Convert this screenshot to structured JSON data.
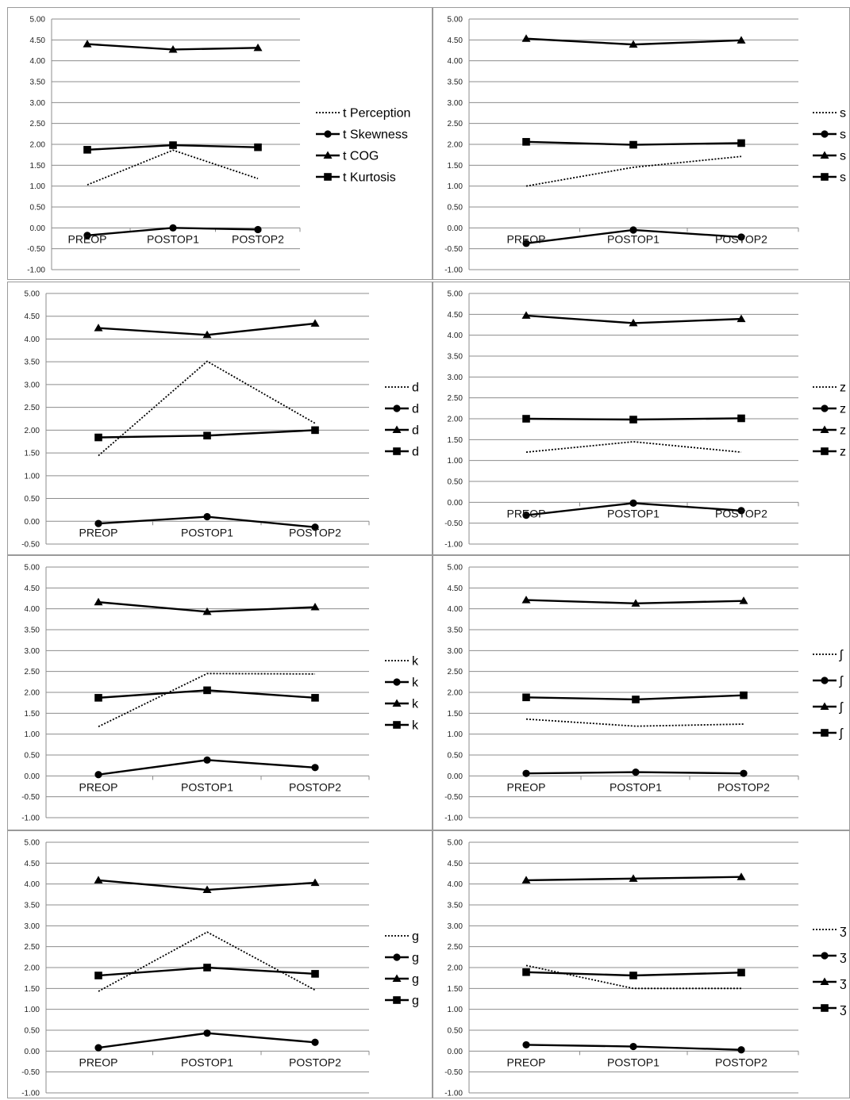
{
  "chart_data": [
    {
      "type": "line",
      "categories": [
        "PREOP",
        "POSTOP1",
        "POSTOP2"
      ],
      "ylim": [
        -1.0,
        5.0
      ],
      "yticks": [
        "5.00",
        "4.50",
        "4.00",
        "3.50",
        "3.00",
        "2.50",
        "2.00",
        "1.50",
        "1.00",
        "0.50",
        "0.00",
        "-0.50",
        "-1.00"
      ],
      "grid": true,
      "legend_position": "right",
      "series": [
        {
          "name": "t Perception",
          "style": "dotted",
          "marker": "none",
          "values": [
            1.03,
            1.86,
            1.18
          ]
        },
        {
          "name": "t Skewness",
          "style": "solid",
          "marker": "circle",
          "values": [
            -0.18,
            0.0,
            -0.04
          ]
        },
        {
          "name": "t COG",
          "style": "solid",
          "marker": "triangle",
          "values": [
            4.4,
            4.27,
            4.31
          ]
        },
        {
          "name": "t Kurtosis",
          "style": "solid",
          "marker": "square",
          "values": [
            1.87,
            1.98,
            1.93
          ]
        }
      ]
    },
    {
      "type": "line",
      "categories": [
        "PREOP",
        "POSTOP1",
        "POSTOP2"
      ],
      "ylim": [
        -1.0,
        5.0
      ],
      "yticks": [
        "5.00",
        "4.50",
        "4.00",
        "3.50",
        "3.00",
        "2.50",
        "2.00",
        "1.50",
        "1.00",
        "0.50",
        "0.00",
        "-0.50",
        "-1.00"
      ],
      "grid": true,
      "legend_position": "right",
      "series": [
        {
          "name": "s",
          "style": "dotted",
          "marker": "none",
          "values": [
            1.0,
            1.45,
            1.71
          ]
        },
        {
          "name": "s",
          "style": "solid",
          "marker": "circle",
          "values": [
            -0.37,
            -0.05,
            -0.22
          ]
        },
        {
          "name": "s",
          "style": "solid",
          "marker": "triangle",
          "values": [
            4.53,
            4.39,
            4.49
          ]
        },
        {
          "name": "s",
          "style": "solid",
          "marker": "square",
          "values": [
            2.06,
            1.99,
            2.03
          ]
        }
      ]
    },
    {
      "type": "line",
      "categories": [
        "PREOP",
        "POSTOP1",
        "POSTOP2"
      ],
      "ylim": [
        -0.5,
        5.0
      ],
      "yticks": [
        "5.00",
        "4.50",
        "4.00",
        "3.50",
        "3.00",
        "2.50",
        "2.00",
        "1.50",
        "1.00",
        "0.50",
        "0.00",
        "-0.50"
      ],
      "grid": true,
      "legend_position": "right",
      "series": [
        {
          "name": "d",
          "style": "dotted",
          "marker": "none",
          "values": [
            1.44,
            3.51,
            2.15
          ]
        },
        {
          "name": "d",
          "style": "solid",
          "marker": "circle",
          "values": [
            -0.05,
            0.1,
            -0.13
          ]
        },
        {
          "name": "d",
          "style": "solid",
          "marker": "triangle",
          "values": [
            4.24,
            4.09,
            4.34
          ]
        },
        {
          "name": "d",
          "style": "solid",
          "marker": "square",
          "values": [
            1.84,
            1.88,
            2.0
          ]
        }
      ]
    },
    {
      "type": "line",
      "categories": [
        "PREOP",
        "POSTOP1",
        "POSTOP2"
      ],
      "ylim": [
        -1.0,
        5.0
      ],
      "yticks": [
        "5.00",
        "4.50",
        "4.00",
        "3.50",
        "3.00",
        "2.50",
        "2.00",
        "1.50",
        "1.00",
        "0.50",
        "0.00",
        "-0.50",
        "-1.00"
      ],
      "grid": true,
      "legend_position": "right",
      "series": [
        {
          "name": "z",
          "style": "dotted",
          "marker": "none",
          "values": [
            1.2,
            1.45,
            1.2
          ]
        },
        {
          "name": "z",
          "style": "solid",
          "marker": "circle",
          "values": [
            -0.31,
            -0.02,
            -0.2
          ]
        },
        {
          "name": "z",
          "style": "solid",
          "marker": "triangle",
          "values": [
            4.47,
            4.29,
            4.39
          ]
        },
        {
          "name": "z",
          "style": "solid",
          "marker": "square",
          "values": [
            2.0,
            1.98,
            2.01
          ]
        }
      ]
    },
    {
      "type": "line",
      "categories": [
        "PREOP",
        "POSTOP1",
        "POSTOP2"
      ],
      "ylim": [
        -1.0,
        5.0
      ],
      "yticks": [
        "5.00",
        "4.50",
        "4.00",
        "3.50",
        "3.00",
        "2.50",
        "2.00",
        "1.50",
        "1.00",
        "0.50",
        "0.00",
        "-0.50",
        "-1.00"
      ],
      "grid": true,
      "legend_position": "right",
      "series": [
        {
          "name": "k",
          "style": "dotted",
          "marker": "none",
          "values": [
            1.18,
            2.45,
            2.44
          ]
        },
        {
          "name": "k",
          "style": "solid",
          "marker": "circle",
          "values": [
            0.03,
            0.38,
            0.2
          ]
        },
        {
          "name": "k",
          "style": "solid",
          "marker": "triangle",
          "values": [
            4.16,
            3.93,
            4.04
          ]
        },
        {
          "name": "k",
          "style": "solid",
          "marker": "square",
          "values": [
            1.87,
            2.05,
            1.87
          ]
        }
      ]
    },
    {
      "type": "line",
      "categories": [
        "PREOP",
        "POSTOP1",
        "POSTOP2"
      ],
      "ylim": [
        -1.0,
        5.0
      ],
      "yticks": [
        "5.00",
        "4.50",
        "4.00",
        "3.50",
        "3.00",
        "2.50",
        "2.00",
        "1.50",
        "1.00",
        "0.50",
        "0.00",
        "-0.50",
        "-1.00"
      ],
      "grid": true,
      "legend_position": "right",
      "series": [
        {
          "name": "ʃ",
          "style": "dotted",
          "marker": "none",
          "values": [
            1.36,
            1.19,
            1.24
          ]
        },
        {
          "name": "ʃ",
          "style": "solid",
          "marker": "circle",
          "values": [
            0.06,
            0.09,
            0.06
          ]
        },
        {
          "name": "ʃ",
          "style": "solid",
          "marker": "triangle",
          "values": [
            4.21,
            4.13,
            4.19
          ]
        },
        {
          "name": "ʃ",
          "style": "solid",
          "marker": "square",
          "values": [
            1.88,
            1.83,
            1.93
          ]
        }
      ]
    },
    {
      "type": "line",
      "categories": [
        "PREOP",
        "POSTOP1",
        "POSTOP2"
      ],
      "ylim": [
        -1.0,
        5.0
      ],
      "yticks": [
        "5.00",
        "4.50",
        "4.00",
        "3.50",
        "3.00",
        "2.50",
        "2.00",
        "1.50",
        "1.00",
        "0.50",
        "0.00",
        "-0.50",
        "-1.00"
      ],
      "grid": true,
      "legend_position": "right",
      "series": [
        {
          "name": "g",
          "style": "dotted",
          "marker": "none",
          "values": [
            1.43,
            2.85,
            1.46
          ]
        },
        {
          "name": "g",
          "style": "solid",
          "marker": "circle",
          "values": [
            0.08,
            0.43,
            0.21
          ]
        },
        {
          "name": "g",
          "style": "solid",
          "marker": "triangle",
          "values": [
            4.09,
            3.86,
            4.03
          ]
        },
        {
          "name": "g",
          "style": "solid",
          "marker": "square",
          "values": [
            1.81,
            2.0,
            1.85
          ]
        }
      ]
    },
    {
      "type": "line",
      "categories": [
        "PREOP",
        "POSTOP1",
        "POSTOP2"
      ],
      "ylim": [
        -1.0,
        5.0
      ],
      "yticks": [
        "5.00",
        "4.50",
        "4.00",
        "3.50",
        "3.00",
        "2.50",
        "2.00",
        "1.50",
        "1.00",
        "0.50",
        "0.00",
        "-0.50",
        "-1.00"
      ],
      "grid": true,
      "legend_position": "right",
      "series": [
        {
          "name": "ʒ",
          "style": "dotted",
          "marker": "none",
          "values": [
            2.05,
            1.5,
            1.5
          ]
        },
        {
          "name": "ʒ",
          "style": "solid",
          "marker": "circle",
          "values": [
            0.15,
            0.11,
            0.03
          ]
        },
        {
          "name": "ʒ",
          "style": "solid",
          "marker": "triangle",
          "values": [
            4.09,
            4.13,
            4.17
          ]
        },
        {
          "name": "ʒ",
          "style": "solid",
          "marker": "square",
          "values": [
            1.89,
            1.81,
            1.88
          ]
        }
      ]
    }
  ]
}
